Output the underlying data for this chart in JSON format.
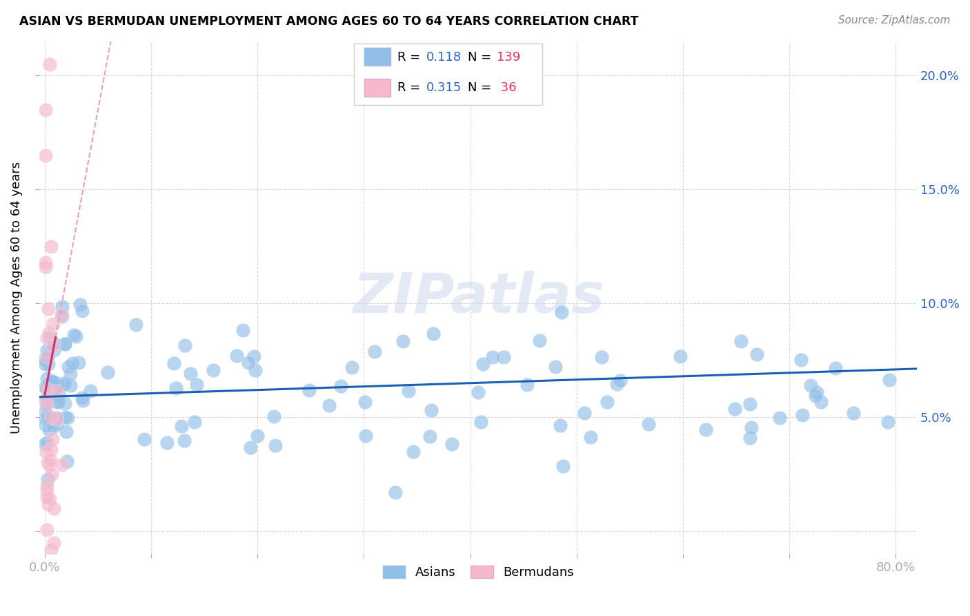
{
  "title": "ASIAN VS BERMUDAN UNEMPLOYMENT AMONG AGES 60 TO 64 YEARS CORRELATION CHART",
  "source": "Source: ZipAtlas.com",
  "ylabel_text": "Unemployment Among Ages 60 to 64 years",
  "xlim": [
    -0.005,
    0.82
  ],
  "ylim": [
    -0.01,
    0.215
  ],
  "x_ticks": [
    0.0,
    0.1,
    0.2,
    0.3,
    0.4,
    0.5,
    0.6,
    0.7,
    0.8
  ],
  "x_tick_labels": [
    "0.0%",
    "",
    "",
    "",
    "",
    "",
    "",
    "",
    "80.0%"
  ],
  "y_ticks": [
    0.0,
    0.05,
    0.1,
    0.15,
    0.2
  ],
  "y_tick_labels_right": [
    "",
    "5.0%",
    "10.0%",
    "15.0%",
    "20.0%"
  ],
  "asian_color": "#92bfe8",
  "bermudan_color": "#f5b8cc",
  "asian_line_color": "#1a5fb4",
  "bermudan_solid_color": "#d63068",
  "bermudan_dash_color": "#e8a0b8",
  "grid_color": "#d8d8d8",
  "watermark": "ZIPatlas",
  "legend_R_asian": "0.118",
  "legend_N_asian": "139",
  "legend_R_bermudan": "0.315",
  "legend_N_bermudan": "36",
  "blue_text_color": "#2962cc",
  "pink_text_color": "#e83060"
}
